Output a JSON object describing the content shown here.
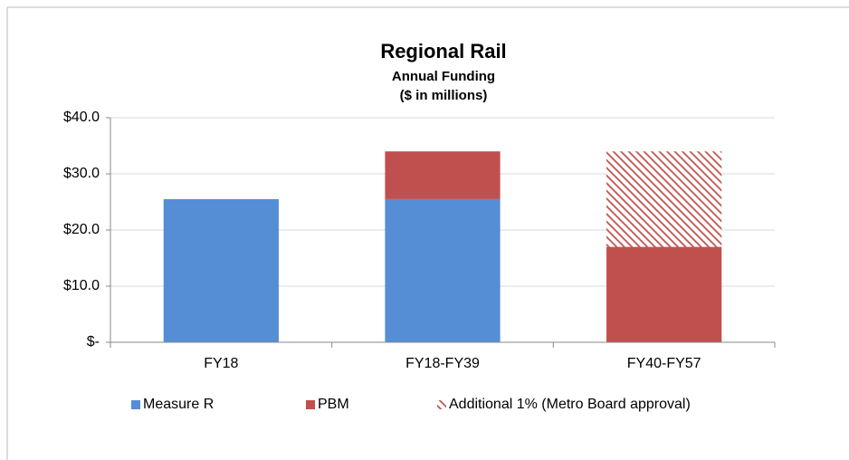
{
  "chart_data": {
    "type": "stacked_bar",
    "title": "Regional Rail",
    "subtitle": [
      "Annual Funding",
      "($ in millions)"
    ],
    "categories": [
      "FY18",
      "FY18-FY39",
      "FY40-FY57"
    ],
    "series": [
      {
        "name": "Measure R",
        "color": "#558ed5",
        "values": [
          25.5,
          25.5,
          0
        ]
      },
      {
        "name": "PBM",
        "color": "#c0504d",
        "values": [
          0,
          8.5,
          17
        ]
      },
      {
        "name": "Additional 1% (Metro Board approval)",
        "color": "#c0504d",
        "pattern": "hatch",
        "values": [
          0,
          0,
          17
        ]
      }
    ],
    "ylim": [
      0,
      40
    ],
    "yticks": [
      {
        "value": 0,
        "label": "$-"
      },
      {
        "value": 10,
        "label": "$10.0"
      },
      {
        "value": 20,
        "label": "$20.0"
      },
      {
        "value": 30,
        "label": "$30.0"
      },
      {
        "value": 40,
        "label": "$40.0"
      }
    ],
    "grid": true,
    "legend": "bottom"
  }
}
